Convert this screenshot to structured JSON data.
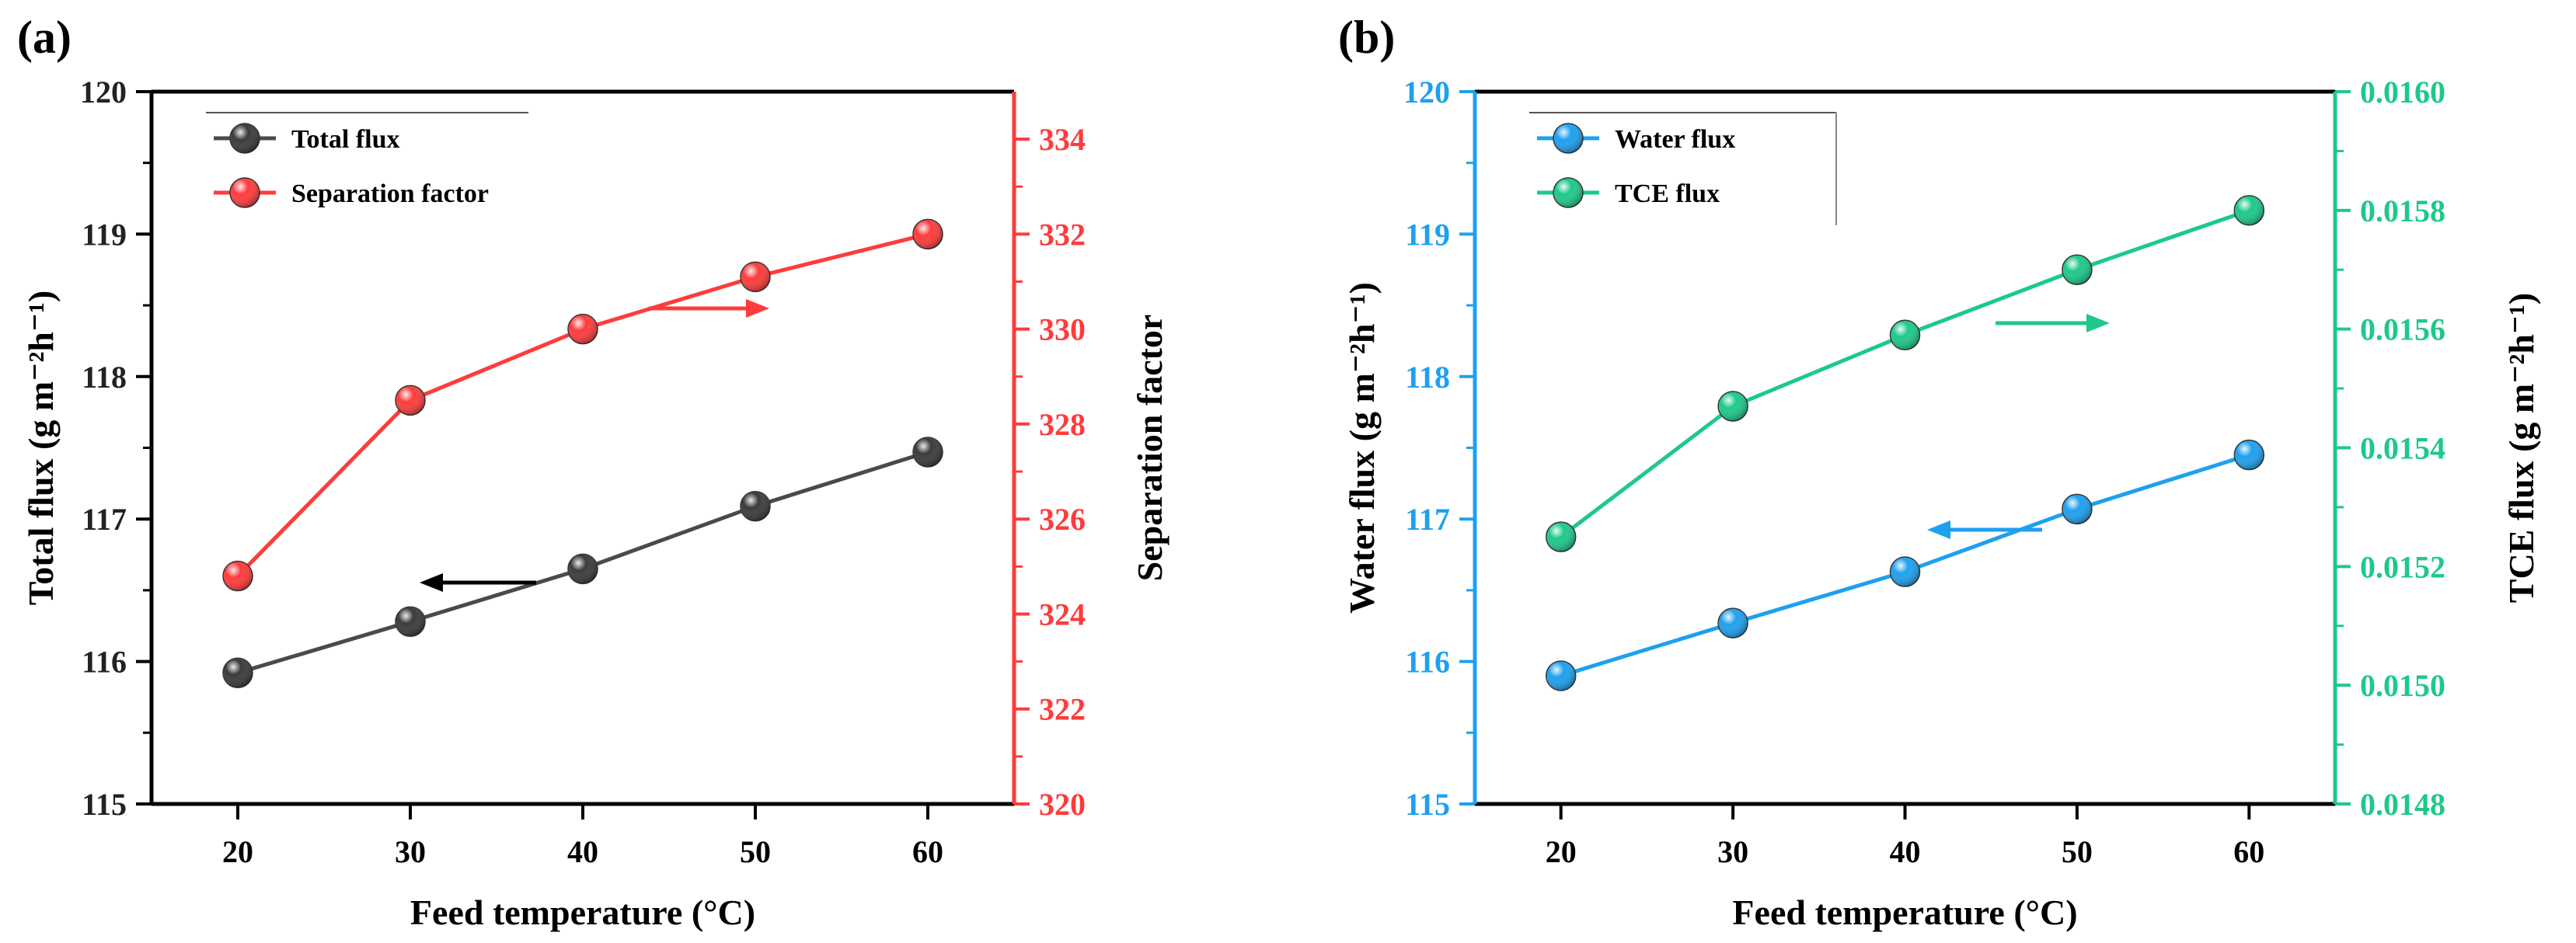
{
  "chart_data": [
    {
      "panel_label": "(a)",
      "type": "line",
      "title": "",
      "xlabel": "Feed temperature (°C)",
      "x": [
        20,
        30,
        40,
        50,
        60
      ],
      "xlim": [
        15,
        65
      ],
      "xticks": [
        20,
        30,
        40,
        50,
        60
      ],
      "ylabel_left": "Total flux (g m⁻²h⁻¹)",
      "ylim_left": [
        115,
        120
      ],
      "yticks_left": [
        115,
        116,
        117,
        118,
        119,
        120
      ],
      "ylabel_right": "Separation factor",
      "ylim_right": [
        320,
        335
      ],
      "yticks_right": [
        320,
        322,
        324,
        326,
        328,
        330,
        332,
        334
      ],
      "grid": false,
      "legend_position": "top-left",
      "series": [
        {
          "name": "Total flux",
          "axis": "left",
          "color": "#4a4a4a",
          "marker_color": "#3a3a3a",
          "values": [
            115.92,
            116.28,
            116.65,
            117.09,
            117.47
          ]
        },
        {
          "name": "Separation factor",
          "axis": "right",
          "color": "#ff3b3b",
          "marker_color": "#ff3b3b",
          "values": [
            324.8,
            328.5,
            330.0,
            331.1,
            332.0
          ]
        }
      ],
      "left_axis_color": "#000000",
      "right_axis_color": "#ff3b3b"
    },
    {
      "panel_label": "(b)",
      "type": "line",
      "title": "",
      "xlabel": "Feed temperature (°C)",
      "x": [
        20,
        30,
        40,
        50,
        60
      ],
      "xlim": [
        15,
        65
      ],
      "xticks": [
        20,
        30,
        40,
        50,
        60
      ],
      "ylabel_left": "Water flux (g m⁻²h⁻¹)",
      "ylim_left": [
        115,
        120
      ],
      "yticks_left": [
        115,
        116,
        117,
        118,
        119,
        120
      ],
      "ylabel_right": "TCE flux (g m⁻²h⁻¹)",
      "ylim_right": [
        0.0148,
        0.016
      ],
      "yticks_right": [
        "0.0148",
        "0.0150",
        "0.0152",
        "0.0154",
        "0.0156",
        "0.0158",
        "0.0160"
      ],
      "grid": false,
      "legend_position": "top-left",
      "series": [
        {
          "name": "Water flux",
          "axis": "left",
          "color": "#1ea0f0",
          "marker_color": "#1ea0f0",
          "values": [
            115.9,
            116.27,
            116.63,
            117.07,
            117.45
          ]
        },
        {
          "name": "TCE flux",
          "axis": "right",
          "color": "#1dc98a",
          "marker_color": "#1dc98a",
          "values": [
            0.01525,
            0.01547,
            0.01559,
            0.0157,
            0.0158
          ]
        }
      ],
      "left_axis_color": "#1ea0f0",
      "right_axis_color": "#1dc98a"
    }
  ]
}
